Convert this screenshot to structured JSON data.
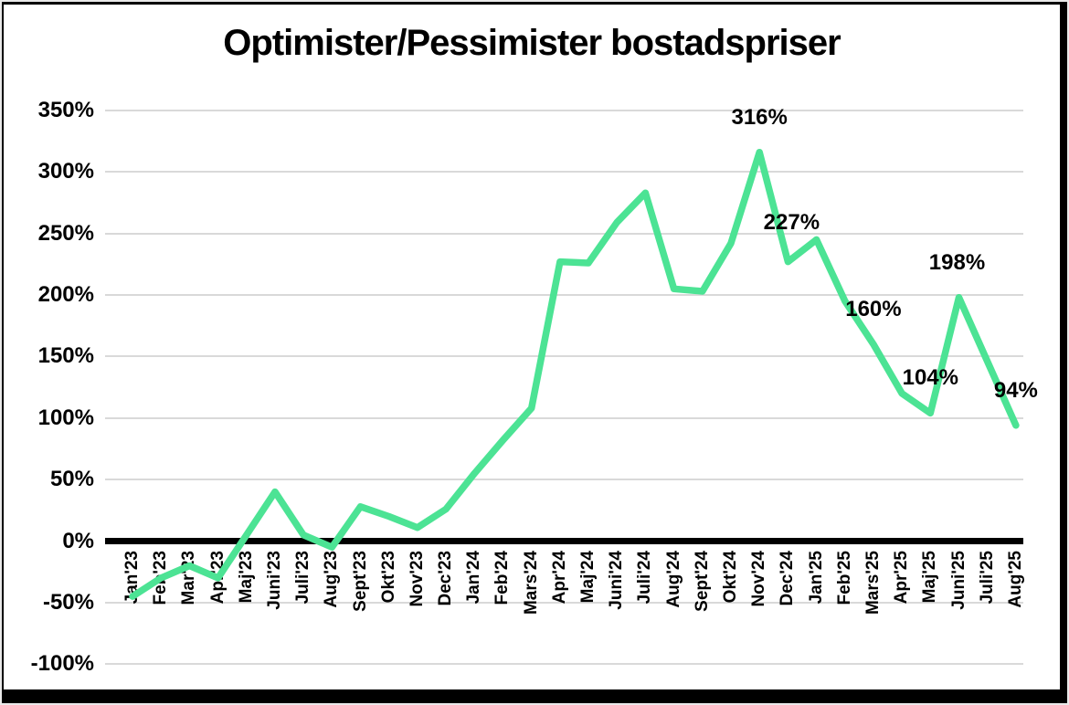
{
  "title": "Optimister/Pessimister bostadspriser",
  "colors": {
    "series_green": "#4CE394",
    "gridline": "#d9d9d9",
    "axis_black": "#000000",
    "background": "#ffffff",
    "frame_border": "#000000"
  },
  "chart_data": {
    "type": "line",
    "title": "Optimister/Pessimister bostadspriser",
    "categories": [
      "Jan'23",
      "Feb'23",
      "Mar'23",
      "Apr'23",
      "Maj'23",
      "Juni'23",
      "Juli'23",
      "Aug'23",
      "Sept'23",
      "Okt'23",
      "Nov'23",
      "Dec'23",
      "Jan'24",
      "Feb'24",
      "Mars'24",
      "Apr'24",
      "Maj'24",
      "Juni'24",
      "Juli'24",
      "Aug'24",
      "Sept'24",
      "Okt'24",
      "Nov'24",
      "Dec'24",
      "Jan'25",
      "Feb'25",
      "Mars'25",
      "Apr'25",
      "Maj'25",
      "Juni'25",
      "Juli'25",
      "Aug'25"
    ],
    "values": [
      -45,
      -30,
      -20,
      -30,
      5,
      40,
      5,
      -5,
      28,
      20,
      11,
      26,
      55,
      82,
      108,
      227,
      226,
      259,
      283,
      205,
      203,
      242,
      316,
      227,
      245,
      195,
      160,
      120,
      104,
      198,
      146,
      94
    ],
    "series_name": "Optimister/Pessimister",
    "line_color": "#4CE394",
    "ylim": [
      -100,
      350
    ],
    "ytick_step": 50,
    "yticks": [
      {
        "value": 350,
        "label": "350%"
      },
      {
        "value": 300,
        "label": "300%"
      },
      {
        "value": 250,
        "label": "250%"
      },
      {
        "value": 200,
        "label": "200%"
      },
      {
        "value": 150,
        "label": "150%"
      },
      {
        "value": 100,
        "label": "100%"
      },
      {
        "value": 50,
        "label": "50%"
      },
      {
        "value": 0,
        "label": "0%"
      },
      {
        "value": -50,
        "label": "-50%"
      },
      {
        "value": -100,
        "label": "-100%"
      }
    ],
    "grid": true,
    "zero_axis_emphasized": true,
    "legend": "none",
    "annotations": [
      {
        "category": "Nov'24",
        "text": "316%",
        "dx": 0,
        "dy": 0
      },
      {
        "category": "Dec'24",
        "text": "227%",
        "dx": 4,
        "dy": -5
      },
      {
        "category": "Mars'25",
        "text": "160%",
        "dx": 0,
        "dy": 0
      },
      {
        "category": "Maj'25",
        "text": "104%",
        "dx": 0,
        "dy": 0
      },
      {
        "category": "Juni'25",
        "text": "198%",
        "dx": -2,
        "dy": 0
      },
      {
        "category": "Aug'25",
        "text": "94%",
        "dx": 0,
        "dy": 0
      }
    ]
  }
}
